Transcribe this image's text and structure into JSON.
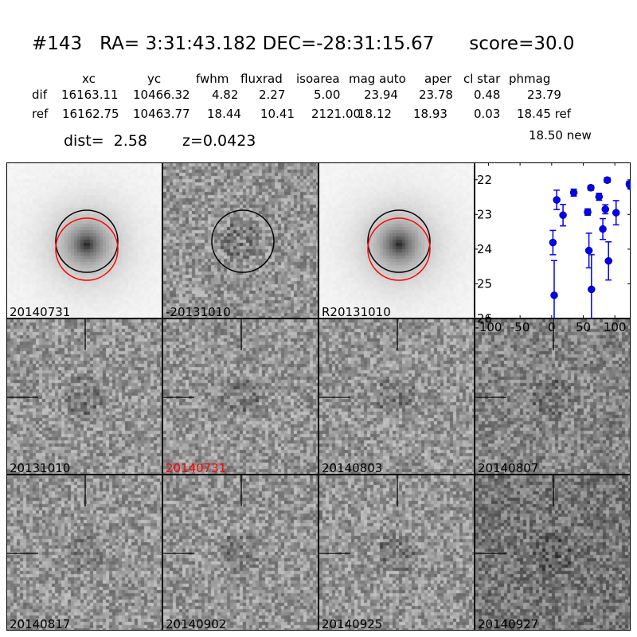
{
  "header": {
    "title": "#143   RA= 3:31:43.182 DEC=-28:31:15.67      score=30.0",
    "columns": [
      "xc",
      "yc",
      "fwhm",
      "fluxrad",
      "isoarea",
      "mag auto",
      "aper",
      "cl star",
      "phmag"
    ],
    "rows": [
      {
        "name": "dif",
        "values": [
          "16163.11",
          "10466.32",
          "4.82",
          "2.27",
          "5.00",
          "23.94",
          "23.78",
          "0.48",
          "23.79"
        ]
      },
      {
        "name": "ref",
        "values": [
          "16162.75",
          "10463.77",
          "18.44",
          "10.41",
          "2121.00",
          "18.12",
          "18.93",
          "0.03",
          "18.45 ref"
        ]
      }
    ],
    "new_mag": "18.50 new",
    "dist": "dist=  2.58",
    "z": "z=0.0423"
  },
  "stamps": [
    {
      "label": "20140731",
      "kind": "galaxy",
      "circles": [
        "black",
        "red"
      ]
    },
    {
      "label": "-20131010",
      "kind": "diff",
      "circles": [
        "black"
      ]
    },
    {
      "label": "R20131010",
      "kind": "galaxy",
      "circles": [
        "black",
        "red"
      ]
    },
    {
      "label": "20131010",
      "kind": "noise"
    },
    {
      "label": "20140731",
      "kind": "noise",
      "label_color": "#ff0000"
    },
    {
      "label": "20140803",
      "kind": "noise"
    },
    {
      "label": "20140807",
      "kind": "noise"
    },
    {
      "label": "20140817",
      "kind": "noise"
    },
    {
      "label": "20140902",
      "kind": "noise"
    },
    {
      "label": "20140925",
      "kind": "noise"
    },
    {
      "label": "20140927",
      "kind": "noise"
    }
  ],
  "chart_data": {
    "type": "scatter",
    "title": "",
    "xlabel": "",
    "ylabel": "",
    "xlim": [
      -122,
      125
    ],
    "ylim": [
      26,
      21.5
    ],
    "y_inverted": true,
    "xticks": [
      "-100",
      "-50",
      "0",
      "50",
      "100"
    ],
    "yticks": [
      "22",
      "23",
      "24",
      "25",
      "26"
    ],
    "marker_color": "#0000ff",
    "points": [
      {
        "x": 2,
        "y": 23.81,
        "err": 0.35
      },
      {
        "x": 4,
        "y": 25.33,
        "err": 1.0
      },
      {
        "x": 8,
        "y": 22.58,
        "err": 0.28
      },
      {
        "x": 18,
        "y": 23.02,
        "err": 0.31
      },
      {
        "x": 35,
        "y": 22.37,
        "err": 0.1
      },
      {
        "x": 57,
        "y": 22.93,
        "err": 0.09
      },
      {
        "x": 59,
        "y": 24.04,
        "err": 0.5
      },
      {
        "x": 62,
        "y": 22.23,
        "err": 0.07
      },
      {
        "x": 63,
        "y": 25.16,
        "err": 1.0
      },
      {
        "x": 75,
        "y": 22.49,
        "err": 0.1
      },
      {
        "x": 81,
        "y": 23.42,
        "err": 0.3
      },
      {
        "x": 85,
        "y": 22.85,
        "err": 0.13
      },
      {
        "x": 88,
        "y": 22.01,
        "err": 0.07
      },
      {
        "x": 90,
        "y": 24.34,
        "err": 0.55
      },
      {
        "x": 102,
        "y": 22.95,
        "err": 0.35
      },
      {
        "x": 123,
        "y": 22.12,
        "err": 0.07
      },
      {
        "x": 125,
        "y": 22.19,
        "err": 0.07
      }
    ]
  }
}
